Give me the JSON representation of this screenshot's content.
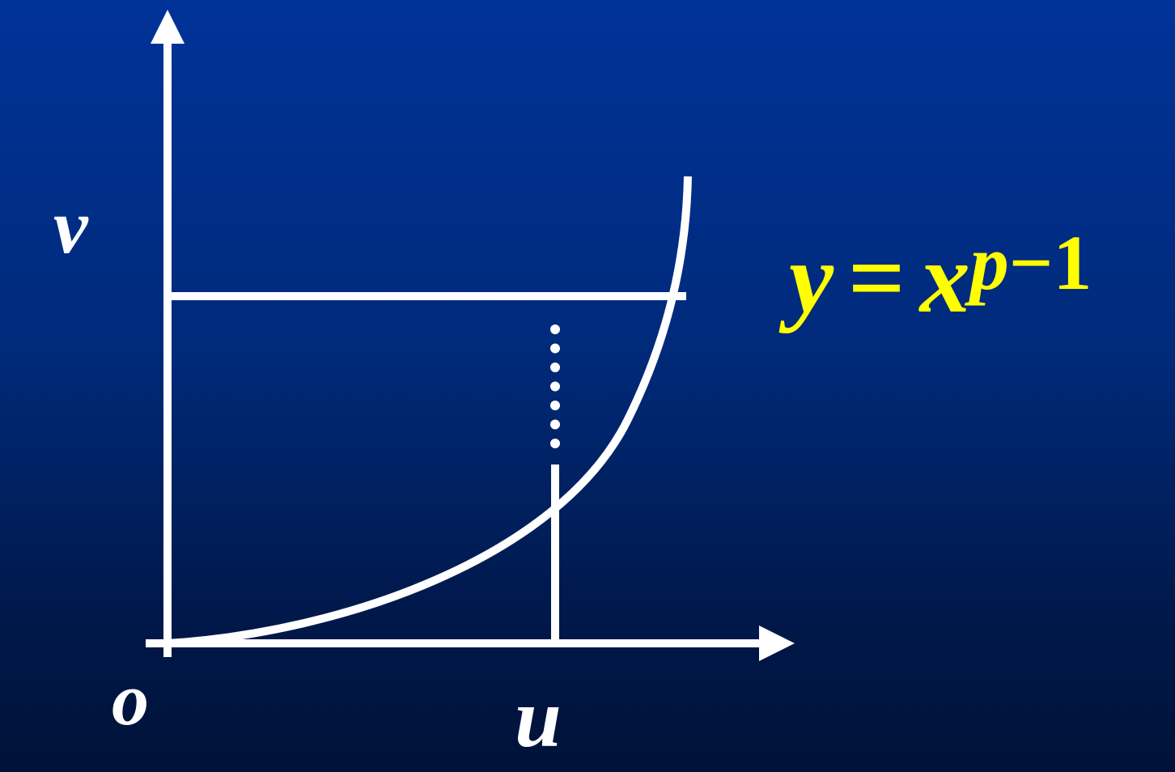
{
  "colors": {
    "background_top": "#003399",
    "background_bottom": "#001238",
    "lines": "#ffffff",
    "equation": "#ffff00"
  },
  "labels": {
    "vertical_value": "v",
    "origin": "o",
    "horizontal_value": "u"
  },
  "equation": {
    "lhs": "y",
    "equals": "=",
    "base": "x",
    "exponent_var": "p",
    "exponent_rest": "−1"
  },
  "curve": {
    "function": "y = x^(p-1)",
    "style": "convex increasing curve from origin"
  }
}
